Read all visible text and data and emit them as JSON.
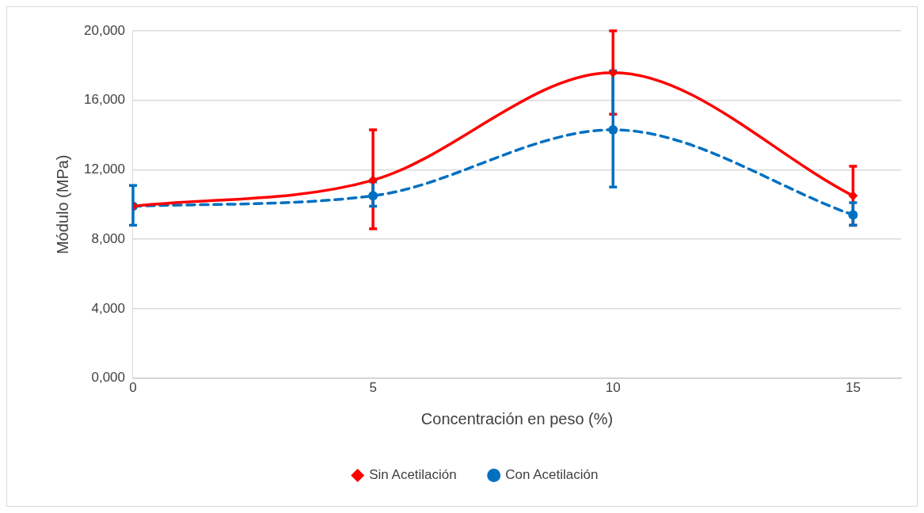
{
  "chart_data": {
    "type": "line",
    "xlabel": "Concentración en peso (%)",
    "ylabel": "Módulo (MPa)",
    "x": [
      0,
      5,
      10,
      15
    ],
    "xlim": [
      0,
      16
    ],
    "xticks": [
      0,
      5,
      10,
      15
    ],
    "ylim": [
      0,
      20000
    ],
    "yticks": [
      {
        "value": 0,
        "label": "0,000"
      },
      {
        "value": 4000,
        "label": "4,000"
      },
      {
        "value": 8000,
        "label": "8,000"
      },
      {
        "value": 12000,
        "label": "12,000"
      },
      {
        "value": 16000,
        "label": "16,000"
      },
      {
        "value": 20000,
        "label": "20,000"
      }
    ],
    "grid": "y",
    "legend": "bottom",
    "series": [
      {
        "name": "Sin Acetilación",
        "color": "#ff0000",
        "marker": "diamond",
        "line_style": "solid",
        "values": [
          9900,
          11400,
          17600,
          10500
        ],
        "errors": [
          null,
          [
            8600,
            14300
          ],
          [
            15200,
            20000
          ],
          [
            8800,
            12200
          ]
        ]
      },
      {
        "name": "Con Acetilación",
        "color": "#0070c0",
        "marker": "circle",
        "line_style": "dashed",
        "values": [
          9900,
          10500,
          14300,
          9400
        ],
        "errors": [
          [
            8800,
            11100
          ],
          [
            9900,
            11300
          ],
          [
            11000,
            17700
          ],
          [
            8800,
            10100
          ]
        ]
      }
    ]
  }
}
